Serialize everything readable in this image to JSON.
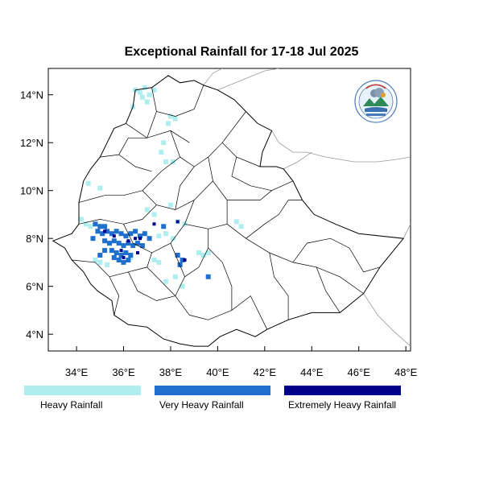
{
  "title": "Exceptional Rainfall for 17-18 Jul 2025",
  "axes": {
    "x_ticks": [
      {
        "value": 34,
        "label": "34°E"
      },
      {
        "value": 36,
        "label": "36°E"
      },
      {
        "value": 38,
        "label": "38°E"
      },
      {
        "value": 40,
        "label": "40°E"
      },
      {
        "value": 42,
        "label": "42°E"
      },
      {
        "value": 44,
        "label": "44°E"
      },
      {
        "value": 46,
        "label": "46°E"
      },
      {
        "value": 48,
        "label": "48°E"
      }
    ],
    "y_ticks": [
      {
        "value": 4,
        "label": "4°N"
      },
      {
        "value": 6,
        "label": "6°N"
      },
      {
        "value": 8,
        "label": "8°N"
      },
      {
        "value": 10,
        "label": "10°N"
      },
      {
        "value": 12,
        "label": "12°N"
      },
      {
        "value": 14,
        "label": "14°N"
      }
    ],
    "lon_range": [
      32.8,
      48.2
    ],
    "lat_range": [
      3.3,
      15.1
    ]
  },
  "legend": [
    {
      "label": "Heavy Rainfall",
      "color": "#aeeeee"
    },
    {
      "label": "Very Heavy Rainfall",
      "color": "#1e6fce"
    },
    {
      "label": "Extremely Heavy Rainfall",
      "color": "#00008b"
    }
  ],
  "logo_icon": "meteorology-agency-logo",
  "map_outline": {
    "country_border": [
      [
        33.0,
        7.9
      ],
      [
        33.8,
        8.2
      ],
      [
        34.1,
        8.6
      ],
      [
        34.1,
        9.5
      ],
      [
        34.3,
        10.4
      ],
      [
        34.6,
        10.9
      ],
      [
        35.0,
        11.4
      ],
      [
        35.3,
        12.0
      ],
      [
        35.6,
        12.6
      ],
      [
        36.1,
        12.8
      ],
      [
        36.4,
        13.5
      ],
      [
        36.5,
        14.2
      ],
      [
        37.2,
        14.3
      ],
      [
        37.9,
        14.8
      ],
      [
        38.4,
        14.5
      ],
      [
        39.0,
        14.6
      ],
      [
        39.4,
        14.4
      ],
      [
        40.0,
        14.2
      ],
      [
        40.7,
        13.8
      ],
      [
        41.2,
        13.3
      ],
      [
        41.7,
        12.8
      ],
      [
        42.3,
        12.5
      ],
      [
        41.9,
        11.6
      ],
      [
        41.8,
        11.0
      ],
      [
        42.5,
        11.0
      ],
      [
        42.8,
        10.9
      ],
      [
        43.2,
        10.4
      ],
      [
        43.6,
        9.6
      ],
      [
        44.1,
        9.0
      ],
      [
        45.0,
        8.6
      ],
      [
        46.0,
        8.2
      ],
      [
        47.9,
        8.0
      ],
      [
        46.9,
        6.8
      ],
      [
        46.2,
        5.7
      ],
      [
        45.2,
        4.9
      ],
      [
        44.0,
        4.9
      ],
      [
        43.0,
        4.6
      ],
      [
        42.1,
        4.2
      ],
      [
        41.6,
        3.9
      ],
      [
        40.8,
        4.2
      ],
      [
        40.1,
        3.9
      ],
      [
        39.6,
        3.5
      ],
      [
        39.0,
        3.5
      ],
      [
        38.4,
        3.6
      ],
      [
        37.7,
        3.8
      ],
      [
        37.0,
        4.3
      ],
      [
        36.2,
        4.4
      ],
      [
        35.6,
        4.8
      ],
      [
        35.5,
        5.4
      ],
      [
        34.9,
        5.8
      ],
      [
        34.6,
        6.1
      ],
      [
        34.3,
        6.6
      ],
      [
        33.8,
        7.1
      ],
      [
        33.5,
        7.6
      ]
    ],
    "admin_lines": [
      [
        [
          34.1,
          9.5
        ],
        [
          35.2,
          9.8
        ],
        [
          36.0,
          9.8
        ],
        [
          36.8,
          10.0
        ]
      ],
      [
        [
          35.0,
          11.4
        ],
        [
          35.8,
          11.5
        ],
        [
          36.5,
          11.0
        ],
        [
          37.2,
          10.8
        ]
      ],
      [
        [
          36.1,
          12.8
        ],
        [
          37.0,
          12.2
        ],
        [
          38.0,
          12.5
        ],
        [
          38.8,
          12.0
        ]
      ],
      [
        [
          37.2,
          14.3
        ],
        [
          37.4,
          13.3
        ],
        [
          38.2,
          13.1
        ],
        [
          39.0,
          13.4
        ],
        [
          39.4,
          14.4
        ]
      ],
      [
        [
          38.0,
          12.5
        ],
        [
          38.4,
          11.4
        ],
        [
          39.0,
          11.0
        ],
        [
          39.6,
          11.4
        ],
        [
          40.2,
          12.0
        ],
        [
          41.2,
          13.3
        ]
      ],
      [
        [
          39.6,
          11.4
        ],
        [
          39.8,
          10.4
        ],
        [
          40.4,
          9.6
        ],
        [
          41.8,
          9.6
        ],
        [
          42.3,
          10.0
        ],
        [
          43.2,
          10.4
        ]
      ],
      [
        [
          36.8,
          10.0
        ],
        [
          37.4,
          9.4
        ],
        [
          38.2,
          9.2
        ],
        [
          39.0,
          9.6
        ],
        [
          39.8,
          10.4
        ]
      ],
      [
        [
          36.8,
          10.0
        ],
        [
          37.6,
          10.8
        ],
        [
          38.4,
          11.4
        ]
      ],
      [
        [
          34.1,
          8.6
        ],
        [
          35.0,
          8.8
        ],
        [
          36.0,
          8.6
        ],
        [
          36.8,
          8.8
        ],
        [
          37.4,
          9.4
        ]
      ],
      [
        [
          36.0,
          8.6
        ],
        [
          36.4,
          7.8
        ],
        [
          37.2,
          7.4
        ],
        [
          38.0,
          7.8
        ],
        [
          38.6,
          8.6
        ],
        [
          39.0,
          9.6
        ]
      ],
      [
        [
          38.6,
          8.6
        ],
        [
          39.6,
          8.4
        ],
        [
          40.4,
          8.6
        ],
        [
          40.4,
          9.6
        ]
      ],
      [
        [
          33.8,
          7.1
        ],
        [
          34.8,
          7.0
        ],
        [
          35.4,
          6.4
        ],
        [
          35.8,
          5.6
        ],
        [
          35.6,
          4.8
        ]
      ],
      [
        [
          35.4,
          6.4
        ],
        [
          36.2,
          6.6
        ],
        [
          37.0,
          6.8
        ],
        [
          37.2,
          7.4
        ]
      ],
      [
        [
          36.2,
          6.6
        ],
        [
          36.6,
          5.8
        ],
        [
          37.4,
          5.4
        ],
        [
          38.2,
          5.6
        ],
        [
          38.6,
          6.4
        ],
        [
          38.0,
          7.8
        ]
      ],
      [
        [
          38.6,
          6.4
        ],
        [
          39.2,
          6.8
        ],
        [
          39.6,
          7.6
        ],
        [
          39.6,
          8.4
        ]
      ],
      [
        [
          38.2,
          5.6
        ],
        [
          38.8,
          4.8
        ],
        [
          39.6,
          4.6
        ],
        [
          40.6,
          5.0
        ],
        [
          41.4,
          5.6
        ],
        [
          42.1,
          4.2
        ]
      ],
      [
        [
          40.6,
          5.0
        ],
        [
          40.6,
          6.0
        ],
        [
          40.2,
          7.0
        ],
        [
          39.6,
          7.6
        ]
      ],
      [
        [
          40.4,
          8.6
        ],
        [
          41.2,
          8.0
        ],
        [
          42.2,
          7.4
        ],
        [
          43.2,
          7.0
        ],
        [
          44.2,
          6.8
        ],
        [
          45.2,
          6.4
        ],
        [
          46.2,
          5.7
        ]
      ],
      [
        [
          41.2,
          8.0
        ],
        [
          42.0,
          8.6
        ],
        [
          42.6,
          9.0
        ],
        [
          43.0,
          9.6
        ],
        [
          43.6,
          9.6
        ]
      ],
      [
        [
          42.2,
          7.4
        ],
        [
          42.4,
          6.4
        ],
        [
          43.0,
          5.6
        ],
        [
          43.0,
          4.6
        ]
      ],
      [
        [
          43.2,
          7.0
        ],
        [
          43.8,
          7.8
        ],
        [
          44.8,
          8.0
        ],
        [
          45.6,
          7.6
        ],
        [
          46.2,
          6.6
        ],
        [
          46.9,
          6.8
        ]
      ],
      [
        [
          44.2,
          6.8
        ],
        [
          44.6,
          5.8
        ],
        [
          45.2,
          4.9
        ]
      ],
      [
        [
          40.2,
          12.0
        ],
        [
          40.8,
          11.4
        ],
        [
          41.8,
          11.0
        ]
      ],
      [
        [
          40.8,
          11.4
        ],
        [
          40.6,
          10.6
        ],
        [
          41.4,
          10.2
        ],
        [
          42.3,
          10.0
        ]
      ],
      [
        [
          37.4,
          13.3
        ],
        [
          37.0,
          12.2
        ]
      ],
      [
        [
          35.8,
          11.5
        ],
        [
          36.2,
          12.2
        ],
        [
          37.0,
          12.2
        ]
      ],
      [
        [
          38.2,
          9.2
        ],
        [
          38.4,
          10.2
        ],
        [
          39.0,
          11.0
        ]
      ],
      [
        [
          37.0,
          6.8
        ],
        [
          37.6,
          6.2
        ],
        [
          38.2,
          5.6
        ]
      ]
    ],
    "neighbor_lines": [
      [
        [
          39.4,
          14.4
        ],
        [
          39.8,
          14.9
        ],
        [
          40.2,
          15.1
        ]
      ],
      [
        [
          42.3,
          12.5
        ],
        [
          42.6,
          12.0
        ],
        [
          43.2,
          11.6
        ],
        [
          43.8,
          11.6
        ],
        [
          44.6,
          11.4
        ],
        [
          45.8,
          11.2
        ],
        [
          46.8,
          11.2
        ],
        [
          47.6,
          11.3
        ],
        [
          48.2,
          11.4
        ]
      ],
      [
        [
          42.8,
          10.9
        ],
        [
          43.4,
          11.2
        ],
        [
          44.0,
          11.6
        ]
      ],
      [
        [
          47.9,
          8.0
        ],
        [
          48.2,
          8.6
        ]
      ],
      [
        [
          46.2,
          5.7
        ],
        [
          46.8,
          4.8
        ],
        [
          47.4,
          4.2
        ],
        [
          48.2,
          3.5
        ]
      ],
      [
        [
          40.0,
          14.2
        ],
        [
          41.0,
          14.6
        ],
        [
          42.0,
          15.0
        ],
        [
          42.6,
          15.1
        ]
      ]
    ]
  },
  "rainfall_cells": {
    "heavy": [
      [
        36.5,
        14.2
      ],
      [
        36.7,
        14.1
      ],
      [
        36.9,
        14.3
      ],
      [
        37.1,
        14.0
      ],
      [
        37.3,
        14.2
      ],
      [
        36.8,
        13.9
      ],
      [
        36.4,
        13.5
      ],
      [
        37.0,
        13.7
      ],
      [
        38.0,
        13.1
      ],
      [
        38.2,
        13.0
      ],
      [
        37.9,
        12.8
      ],
      [
        37.7,
        12.0
      ],
      [
        37.6,
        11.6
      ],
      [
        37.8,
        11.2
      ],
      [
        38.1,
        11.2
      ],
      [
        34.5,
        10.3
      ],
      [
        35.0,
        10.1
      ],
      [
        37.0,
        9.2
      ],
      [
        37.3,
        9.0
      ],
      [
        38.0,
        9.4
      ],
      [
        38.3,
        8.7
      ],
      [
        38.6,
        8.6
      ],
      [
        34.2,
        8.8
      ],
      [
        34.4,
        8.6
      ],
      [
        34.6,
        8.5
      ],
      [
        37.5,
        8.1
      ],
      [
        37.8,
        8.2
      ],
      [
        38.1,
        8.0
      ],
      [
        39.2,
        7.4
      ],
      [
        39.4,
        7.3
      ],
      [
        39.6,
        7.4
      ],
      [
        40.8,
        8.7
      ],
      [
        41.0,
        8.5
      ],
      [
        37.3,
        7.1
      ],
      [
        37.5,
        7.0
      ],
      [
        34.8,
        7.1
      ],
      [
        35.0,
        7.0
      ],
      [
        35.3,
        6.9
      ],
      [
        37.8,
        6.2
      ],
      [
        38.2,
        6.4
      ],
      [
        38.5,
        6.0
      ],
      [
        36.0,
        7.4
      ],
      [
        36.3,
        7.2
      ]
    ],
    "very_heavy": [
      [
        34.8,
        8.6
      ],
      [
        35.0,
        8.5
      ],
      [
        35.2,
        8.5
      ],
      [
        34.9,
        8.3
      ],
      [
        35.1,
        8.2
      ],
      [
        35.3,
        8.3
      ],
      [
        35.5,
        8.2
      ],
      [
        35.7,
        8.3
      ],
      [
        35.9,
        8.2
      ],
      [
        36.1,
        8.1
      ],
      [
        36.3,
        8.2
      ],
      [
        36.5,
        8.3
      ],
      [
        36.7,
        8.1
      ],
      [
        36.9,
        8.2
      ],
      [
        37.1,
        8.0
      ],
      [
        35.2,
        7.9
      ],
      [
        35.4,
        7.8
      ],
      [
        35.6,
        7.9
      ],
      [
        35.8,
        7.8
      ],
      [
        36.0,
        7.7
      ],
      [
        36.2,
        7.8
      ],
      [
        36.4,
        7.7
      ],
      [
        36.6,
        7.8
      ],
      [
        36.8,
        7.7
      ],
      [
        35.5,
        7.5
      ],
      [
        35.7,
        7.4
      ],
      [
        35.9,
        7.3
      ],
      [
        36.1,
        7.4
      ],
      [
        36.3,
        7.3
      ],
      [
        35.6,
        7.2
      ],
      [
        35.8,
        7.1
      ],
      [
        36.0,
        7.0
      ],
      [
        36.2,
        7.1
      ],
      [
        35.2,
        7.5
      ],
      [
        35.0,
        7.3
      ],
      [
        38.3,
        7.3
      ],
      [
        38.5,
        7.1
      ],
      [
        38.4,
        6.9
      ],
      [
        39.6,
        6.4
      ],
      [
        37.7,
        8.5
      ],
      [
        34.7,
        8.0
      ]
    ],
    "extreme": [
      [
        35.2,
        8.3
      ],
      [
        35.6,
        8.1
      ],
      [
        36.2,
        7.9
      ],
      [
        36.5,
        8.0
      ],
      [
        36.0,
        7.2
      ],
      [
        35.9,
        7.5
      ],
      [
        36.7,
        8.0
      ],
      [
        38.6,
        7.1
      ],
      [
        38.3,
        8.7
      ],
      [
        37.3,
        8.6
      ],
      [
        36.6,
        7.4
      ]
    ]
  }
}
